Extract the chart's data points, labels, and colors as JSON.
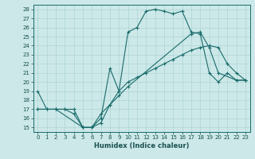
{
  "xlabel": "Humidex (Indice chaleur)",
  "xlim": [
    -0.5,
    23.5
  ],
  "ylim": [
    14.5,
    28.5
  ],
  "yticks": [
    15,
    16,
    17,
    18,
    19,
    20,
    21,
    22,
    23,
    24,
    25,
    26,
    27,
    28
  ],
  "xticks": [
    0,
    1,
    2,
    3,
    4,
    5,
    6,
    7,
    8,
    9,
    10,
    11,
    12,
    13,
    14,
    15,
    16,
    17,
    18,
    19,
    20,
    21,
    22,
    23
  ],
  "background_color": "#cce8e8",
  "grid_color": "#aed4d4",
  "line_color": "#1a6b6b",
  "line1_x": [
    0,
    1,
    2,
    3,
    4,
    5,
    6,
    7,
    8,
    9,
    10,
    11,
    12,
    13,
    14,
    15,
    16,
    17,
    18,
    19,
    20,
    21,
    22,
    23
  ],
  "line1_y": [
    19,
    17,
    17,
    17,
    17,
    15,
    15,
    16,
    21.5,
    19,
    25.5,
    26,
    27.8,
    28,
    27.8,
    27.5,
    27.8,
    25.5,
    25.3,
    21,
    20,
    21,
    20.2,
    20.2
  ],
  "line2_x": [
    0,
    1,
    2,
    3,
    4,
    5,
    6,
    7,
    8,
    9,
    10,
    11,
    12,
    13,
    14,
    15,
    16,
    17,
    18,
    19,
    20,
    21,
    22,
    23
  ],
  "line2_y": [
    17,
    17,
    17,
    17,
    16.5,
    15,
    15,
    16.5,
    17.5,
    19,
    20,
    20.5,
    21,
    21.5,
    22,
    22.5,
    23,
    23.5,
    23.8,
    24,
    23.8,
    22,
    21,
    20.2
  ],
  "line3_x": [
    0,
    2,
    5,
    6,
    7,
    8,
    9,
    10,
    17,
    18,
    19,
    20,
    22,
    23
  ],
  "line3_y": [
    17,
    17,
    15,
    15,
    15.5,
    17.5,
    18.5,
    19.5,
    25.3,
    25.5,
    23.8,
    21,
    20.2,
    20.2
  ]
}
